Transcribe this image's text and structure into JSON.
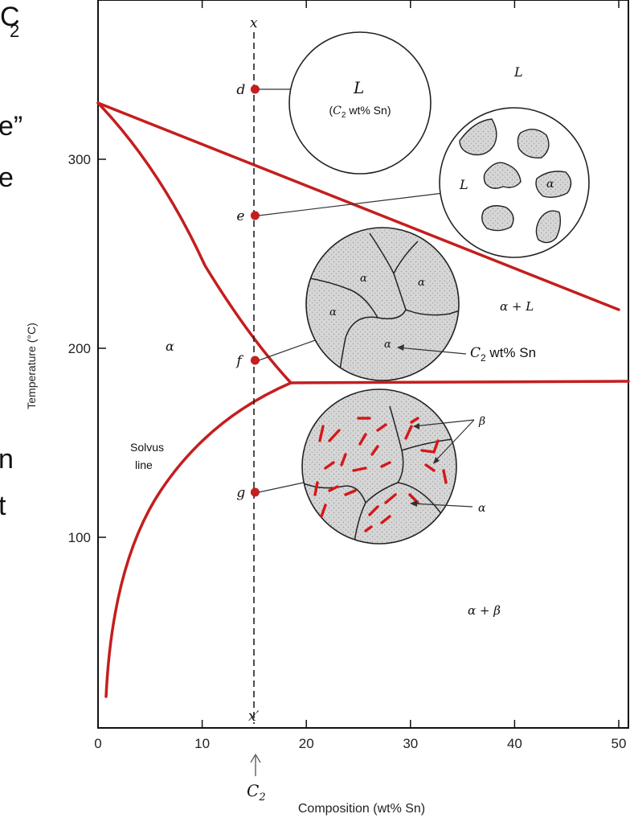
{
  "slide_fragments": {
    "top": "C",
    "top_sub": "2",
    "line2": "e”",
    "line3": "e",
    "line4": "n",
    "line5": "t"
  },
  "axes": {
    "x": {
      "label": "Composition (wt% Sn)",
      "range": [
        0,
        50
      ],
      "ticks": [
        0,
        10,
        20,
        30,
        40,
        50
      ],
      "tick_labels": [
        "0",
        "10",
        "20",
        "30",
        "40",
        "50"
      ]
    },
    "y": {
      "label": "Temperature (°C)",
      "range": [
        0,
        350
      ],
      "ticks": [
        100,
        200,
        300
      ],
      "tick_labels": [
        "100",
        "200",
        "300"
      ]
    }
  },
  "phase_labels": {
    "liquid": "L",
    "alpha": "α",
    "alpha_plus_liquid": "α + L",
    "alpha_plus_beta": "α + β",
    "solvus": [
      "Solvus",
      "line"
    ]
  },
  "path": {
    "top": "x",
    "bottom": "x′",
    "composition": "C",
    "composition_sub": "2",
    "composition_wt": 15,
    "points": [
      {
        "label": "d",
        "temp": 350
      },
      {
        "label": "e",
        "temp": 272
      },
      {
        "label": "f",
        "temp": 193
      },
      {
        "label": "g",
        "temp": 123
      }
    ]
  },
  "microstructures": {
    "d": {
      "phase": "L",
      "comp_c": "C",
      "comp_sub": "2",
      "comp_rest": " wt% Sn"
    },
    "e": {
      "liquid": "L",
      "alpha": "α"
    },
    "f": {
      "grains": [
        "α",
        "α",
        "α",
        "α"
      ],
      "callout_c": "C",
      "callout_sub": "2",
      "callout_rest": " wt% Sn"
    },
    "g": {
      "beta": "β",
      "alpha": "α"
    }
  },
  "colors": {
    "phase_line": "#c41e1e",
    "point": "#c41e1e",
    "grain_fill": "#d4d4d4",
    "beta_precipitate": "#d41818",
    "frame": "#111111"
  }
}
